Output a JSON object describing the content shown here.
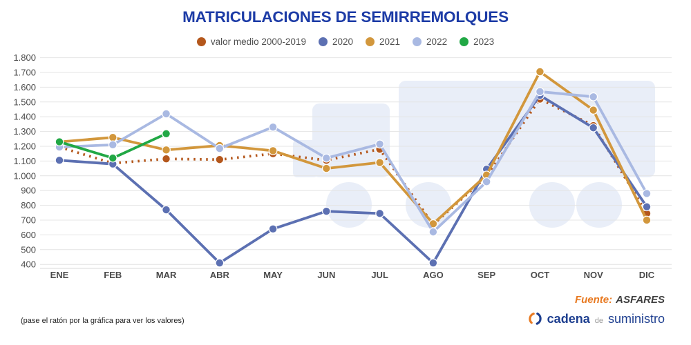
{
  "title": "MATRICULACIONES DE SEMIRREMOLQUES",
  "colors": {
    "title": "#1c3ba6",
    "grid": "#e4e4e4",
    "axis_text": "#4a4a4a",
    "watermark": "#e9eef8",
    "source_accent": "#e87a22",
    "logo_navy": "#1d3e8f"
  },
  "chart_data": {
    "type": "line",
    "title": "MATRICULACIONES DE SEMIRREMOLQUES",
    "categories": [
      "ENE",
      "FEB",
      "MAR",
      "ABR",
      "MAY",
      "JUN",
      "JUL",
      "AGO",
      "SEP",
      "OCT",
      "NOV",
      "DIC"
    ],
    "series": [
      {
        "name": "valor medio 2000-2019",
        "color": "#b4571c",
        "style": "dotted",
        "values": [
          1195,
          1085,
          1115,
          1110,
          1150,
          1105,
          1180,
          670,
          995,
          1520,
          1340,
          745
        ]
      },
      {
        "name": "2020",
        "color": "#5c70b2",
        "style": "solid",
        "values": [
          1105,
          1080,
          770,
          410,
          640,
          760,
          745,
          410,
          1045,
          1545,
          1325,
          790
        ]
      },
      {
        "name": "2021",
        "color": "#d2973c",
        "style": "solid",
        "values": [
          1230,
          1260,
          1175,
          1205,
          1170,
          1050,
          1090,
          675,
          1005,
          1705,
          1445,
          700
        ]
      },
      {
        "name": "2022",
        "color": "#a9b9e2",
        "style": "solid",
        "values": [
          1195,
          1210,
          1420,
          1185,
          1330,
          1120,
          1215,
          620,
          960,
          1570,
          1535,
          880
        ]
      },
      {
        "name": "2023",
        "color": "#21a845",
        "style": "solid",
        "values": [
          1230,
          1120,
          1285,
          null,
          null,
          null,
          null,
          null,
          null,
          null,
          null,
          null
        ]
      }
    ],
    "ylim": [
      400,
      1800
    ],
    "ytick_step": 100,
    "ytick_labels": [
      "400",
      "500",
      "600",
      "700",
      "800",
      "900",
      "1.000",
      "1.100",
      "1.200",
      "1.300",
      "1.400",
      "1.500",
      "1.600",
      "1.700",
      "1.800"
    ],
    "grid": "horizontal",
    "legend_position": "top",
    "xlabel": "",
    "ylabel": ""
  },
  "footer": {
    "hint": "(pase el ratón por la gráfica para ver los valores)",
    "source_label": "Fuente:",
    "source_value": "ASFARES",
    "logo": {
      "part1": "cadena",
      "part2": "de",
      "part3": "suministro"
    }
  }
}
